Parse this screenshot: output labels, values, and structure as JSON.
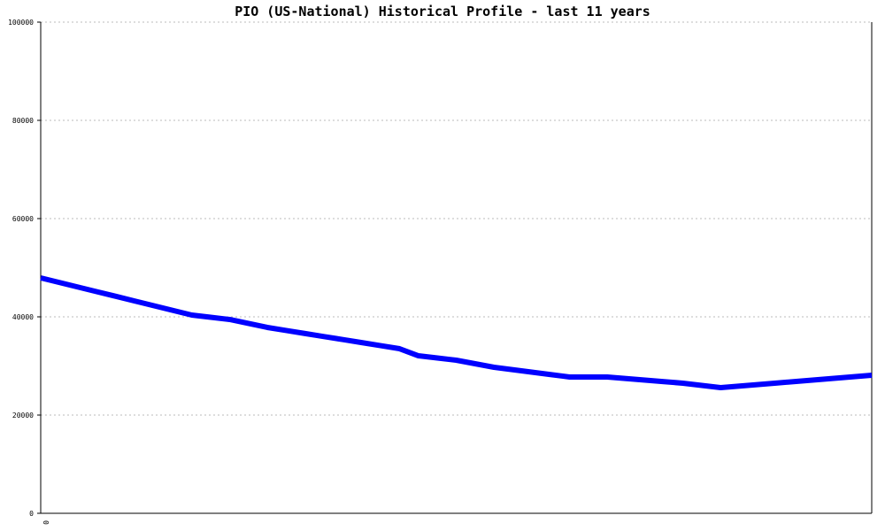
{
  "chart_data": {
    "type": "line",
    "title": "PIO (US-National) Historical Profile - last 11 years",
    "categories": [
      "0",
      null,
      null,
      null,
      null,
      null,
      null,
      null,
      null,
      null,
      null,
      null,
      null,
      null,
      null,
      null,
      null,
      null,
      null,
      null,
      null,
      null,
      null,
      null,
      null,
      null,
      null,
      null,
      null,
      null,
      null,
      null,
      null,
      null,
      null,
      null,
      null,
      null,
      null,
      null,
      null,
      null,
      null,
      null,
      null
    ],
    "series": [
      {
        "color": "#0000ff",
        "values": [
          47930,
          46980,
          46040,
          45090,
          44150,
          43200,
          42250,
          41310,
          40360,
          39910,
          39460,
          38650,
          37840,
          37220,
          36600,
          35980,
          35370,
          34750,
          34130,
          33510,
          32070,
          31620,
          31170,
          30450,
          29730,
          29240,
          28740,
          28250,
          27750,
          27750,
          27750,
          27440,
          27120,
          26810,
          26490,
          26040,
          25590,
          25910,
          26220,
          26540,
          26850,
          27170,
          27480,
          27800,
          28110
        ]
      }
    ],
    "ylim": [
      0,
      100000
    ],
    "yticks": [
      0,
      20000,
      40000,
      60000,
      80000,
      100000
    ],
    "grid": true
  }
}
